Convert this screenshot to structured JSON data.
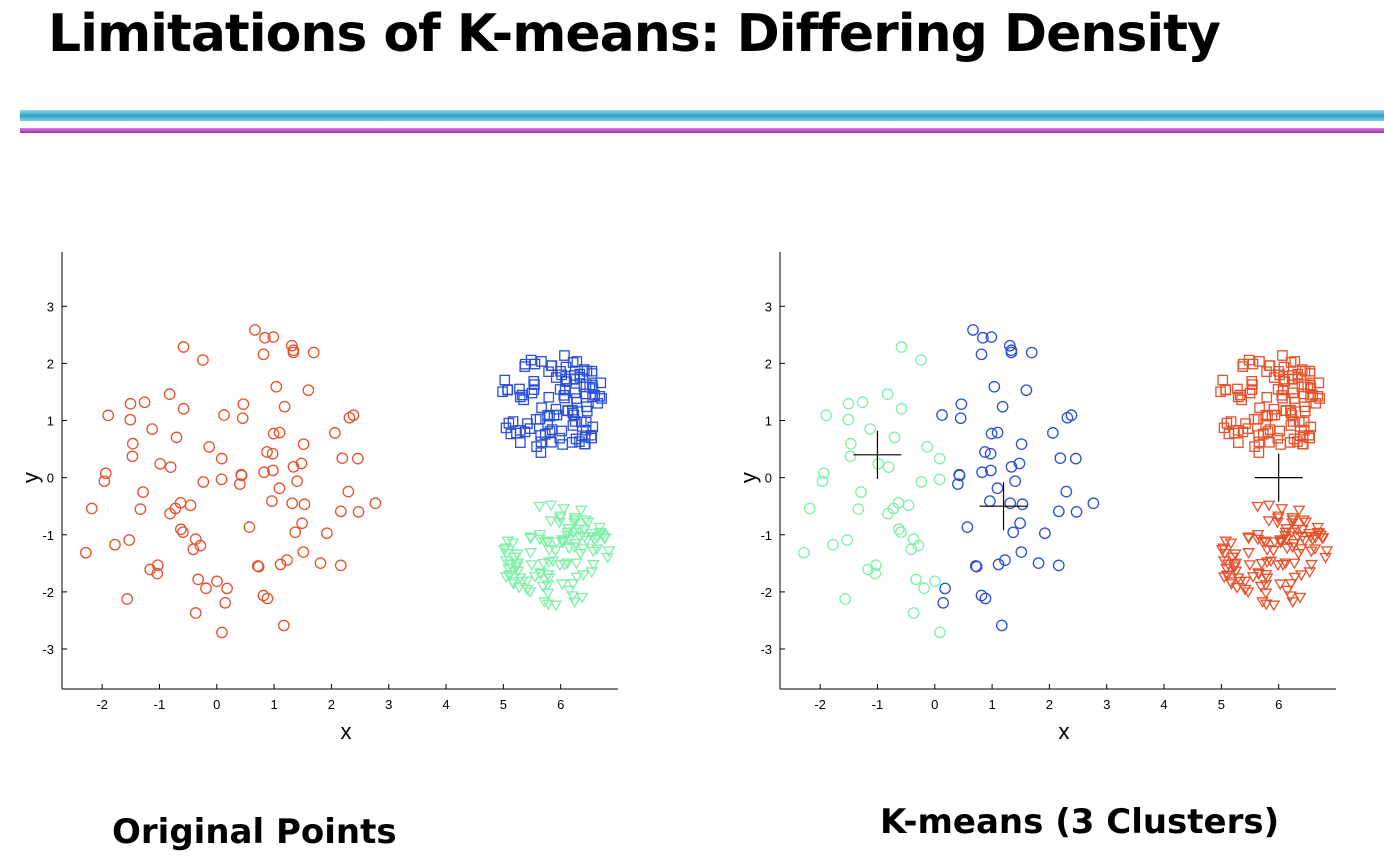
{
  "slide": {
    "title": "Limitations of K-means: Differing Density",
    "caption_left": "Original Points",
    "caption_right": "K-means  (3 Clusters)"
  },
  "colors": {
    "red": "#e8502a",
    "blue": "#2b4fd6",
    "green": "#7ff0a8",
    "axis": "#000000"
  },
  "chart_data": [
    {
      "type": "scatter",
      "xlabel": "x",
      "ylabel": "y",
      "xlim": [
        -2.7,
        7.0
      ],
      "ylim": [
        -3.7,
        3.95
      ],
      "xticks": [
        -2,
        -1,
        0,
        1,
        2,
        3,
        4,
        5,
        6
      ],
      "yticks": [
        -3,
        -2,
        -1,
        0,
        1,
        2,
        3
      ],
      "series": [
        {
          "marker": "circle",
          "color": "red",
          "cluster": "sparse",
          "center": [
            0.1,
            0.0
          ],
          "spread": [
            2.7,
            2.9
          ],
          "count": 100
        },
        {
          "marker": "square",
          "color": "blue",
          "cluster": "dense-top",
          "center": [
            5.85,
            1.3
          ],
          "spread": [
            0.95,
            0.9
          ],
          "count": 110
        },
        {
          "marker": "triangle-down",
          "color": "green",
          "cluster": "dense-bottom",
          "center": [
            5.9,
            -1.35
          ],
          "spread": [
            0.95,
            0.9
          ],
          "count": 110
        }
      ]
    },
    {
      "type": "scatter",
      "xlabel": "x",
      "ylabel": "y",
      "xlim": [
        -2.7,
        7.0
      ],
      "ylim": [
        -3.7,
        3.95
      ],
      "xticks": [
        -2,
        -1,
        0,
        1,
        2,
        3,
        4,
        5,
        6
      ],
      "yticks": [
        -3,
        -2,
        -1,
        0,
        1,
        2,
        3
      ],
      "series": [
        {
          "marker": "circle",
          "color": "green",
          "cluster": "sparse-left"
        },
        {
          "marker": "circle",
          "color": "blue",
          "cluster": "sparse-right"
        },
        {
          "marker": "square",
          "color": "red",
          "cluster": "dense-top"
        },
        {
          "marker": "triangle-down",
          "color": "red",
          "cluster": "dense-bottom"
        }
      ],
      "centroids": [
        [
          -1.0,
          0.4
        ],
        [
          1.2,
          -0.5
        ],
        [
          6.0,
          0.0
        ]
      ]
    }
  ]
}
